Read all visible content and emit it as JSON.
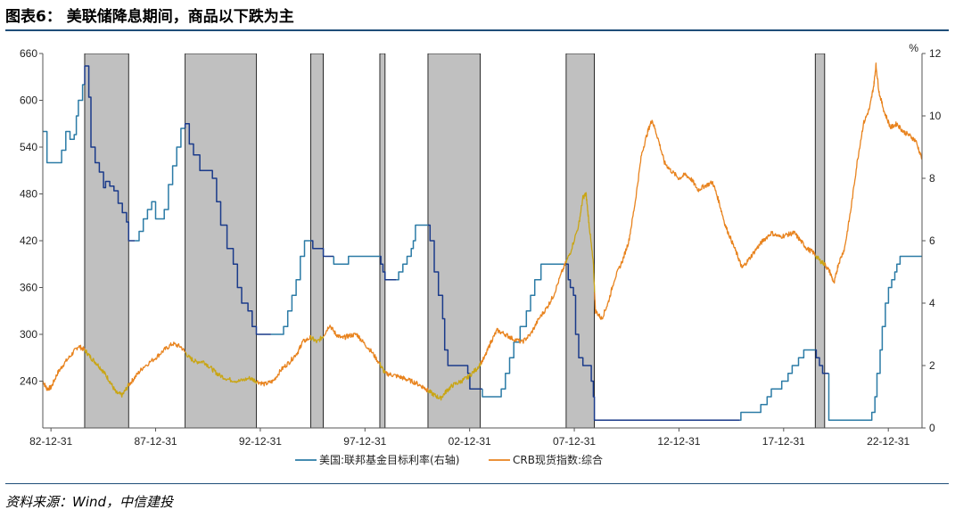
{
  "header": {
    "title": "图表6： 美联储降息期间，商品以下跌为主"
  },
  "footer": {
    "source": "资料来源：Wind，中信建投"
  },
  "chart_data": {
    "type": "line",
    "title": "图表6： 美联储降息期间，商品以下跌为主",
    "x_ticks": [
      "82-12-31",
      "87-12-31",
      "92-12-31",
      "97-12-31",
      "02-12-31",
      "07-12-31",
      "12-12-31",
      "17-12-31",
      "22-12-31"
    ],
    "x_tick_years": [
      1982.99,
      1987.99,
      1992.99,
      1997.99,
      2002.99,
      2007.99,
      2012.99,
      2017.99,
      2022.99
    ],
    "x_range": [
      1982.6,
      2024.6
    ],
    "y_left": {
      "ticks": [
        660,
        600,
        540,
        480,
        420,
        360,
        300,
        240
      ],
      "range": [
        180,
        660
      ]
    },
    "y_right": {
      "unit": "%",
      "ticks": [
        12,
        10,
        8,
        6,
        4,
        2,
        0
      ],
      "range": [
        0,
        12
      ]
    },
    "shaded_periods": [
      [
        1984.6,
        1986.7
      ],
      [
        1989.4,
        1992.8
      ],
      [
        1995.4,
        1996.0
      ],
      [
        1998.7,
        1998.95
      ],
      [
        2001.0,
        2003.5
      ],
      [
        2007.6,
        2008.95
      ],
      [
        2019.5,
        2019.95
      ]
    ],
    "legend_position": "bottom-center",
    "series": [
      {
        "name": "美国:联邦基金目标利率(右轴)",
        "axis": "right",
        "color": "#2b7ba6",
        "highlight_color": "#1a3a8a",
        "points": [
          [
            1982.6,
            9.5
          ],
          [
            1982.8,
            8.5
          ],
          [
            1982.9,
            8.5
          ],
          [
            1983.0,
            8.5
          ],
          [
            1983.3,
            8.5
          ],
          [
            1983.5,
            8.9
          ],
          [
            1983.7,
            9.5
          ],
          [
            1983.9,
            9.25
          ],
          [
            1984.1,
            9.4
          ],
          [
            1984.2,
            10.0
          ],
          [
            1984.3,
            10.5
          ],
          [
            1984.5,
            11.0
          ],
          [
            1984.6,
            11.6
          ],
          [
            1984.8,
            10.6
          ],
          [
            1984.9,
            9.0
          ],
          [
            1985.1,
            8.5
          ],
          [
            1985.3,
            8.2
          ],
          [
            1985.5,
            7.7
          ],
          [
            1985.6,
            7.9
          ],
          [
            1985.8,
            7.75
          ],
          [
            1986.0,
            7.6
          ],
          [
            1986.2,
            7.2
          ],
          [
            1986.4,
            6.9
          ],
          [
            1986.6,
            6.6
          ],
          [
            1986.7,
            6.0
          ],
          [
            1987.0,
            6.0
          ],
          [
            1987.2,
            6.3
          ],
          [
            1987.4,
            6.7
          ],
          [
            1987.6,
            7.0
          ],
          [
            1987.8,
            7.25
          ],
          [
            1987.99,
            6.7
          ],
          [
            1988.2,
            6.7
          ],
          [
            1988.4,
            7.0
          ],
          [
            1988.6,
            7.8
          ],
          [
            1988.8,
            8.4
          ],
          [
            1989.0,
            9.0
          ],
          [
            1989.2,
            9.6
          ],
          [
            1989.4,
            9.75
          ],
          [
            1989.6,
            9.1
          ],
          [
            1989.8,
            8.75
          ],
          [
            1990.1,
            8.25
          ],
          [
            1990.4,
            8.25
          ],
          [
            1990.7,
            8.0
          ],
          [
            1990.9,
            7.25
          ],
          [
            1991.1,
            6.5
          ],
          [
            1991.4,
            5.75
          ],
          [
            1991.7,
            5.25
          ],
          [
            1991.9,
            4.5
          ],
          [
            1992.1,
            4.0
          ],
          [
            1992.4,
            3.75
          ],
          [
            1992.6,
            3.25
          ],
          [
            1992.8,
            3.0
          ],
          [
            1993.5,
            3.0
          ],
          [
            1994.0,
            3.0
          ],
          [
            1994.1,
            3.25
          ],
          [
            1994.3,
            3.75
          ],
          [
            1994.5,
            4.25
          ],
          [
            1994.7,
            4.75
          ],
          [
            1994.9,
            5.5
          ],
          [
            1995.1,
            6.0
          ],
          [
            1995.4,
            6.0
          ],
          [
            1995.5,
            5.75
          ],
          [
            1995.9,
            5.75
          ],
          [
            1996.0,
            5.5
          ],
          [
            1996.5,
            5.25
          ],
          [
            1997.2,
            5.5
          ],
          [
            1998.7,
            5.5
          ],
          [
            1998.75,
            5.25
          ],
          [
            1998.85,
            5.0
          ],
          [
            1998.95,
            4.75
          ],
          [
            1999.5,
            4.75
          ],
          [
            1999.6,
            5.0
          ],
          [
            1999.8,
            5.25
          ],
          [
            2000.0,
            5.5
          ],
          [
            2000.2,
            5.75
          ],
          [
            2000.3,
            6.0
          ],
          [
            2000.4,
            6.5
          ],
          [
            2001.0,
            6.5
          ],
          [
            2001.1,
            6.0
          ],
          [
            2001.3,
            5.0
          ],
          [
            2001.5,
            4.25
          ],
          [
            2001.7,
            3.5
          ],
          [
            2001.8,
            2.5
          ],
          [
            2001.95,
            2.0
          ],
          [
            2002.9,
            1.75
          ],
          [
            2003.0,
            1.25
          ],
          [
            2003.5,
            1.25
          ],
          [
            2003.6,
            1.0
          ],
          [
            2004.4,
            1.0
          ],
          [
            2004.5,
            1.25
          ],
          [
            2004.7,
            1.75
          ],
          [
            2004.9,
            2.25
          ],
          [
            2005.1,
            2.75
          ],
          [
            2005.4,
            3.25
          ],
          [
            2005.7,
            3.75
          ],
          [
            2005.9,
            4.25
          ],
          [
            2006.1,
            4.75
          ],
          [
            2006.4,
            5.25
          ],
          [
            2007.6,
            5.25
          ],
          [
            2007.7,
            4.75
          ],
          [
            2007.8,
            4.5
          ],
          [
            2007.95,
            4.25
          ],
          [
            2008.05,
            3.0
          ],
          [
            2008.2,
            2.25
          ],
          [
            2008.4,
            2.0
          ],
          [
            2008.8,
            1.5
          ],
          [
            2008.9,
            1.0
          ],
          [
            2008.95,
            0.25
          ],
          [
            2015.9,
            0.25
          ],
          [
            2015.95,
            0.5
          ],
          [
            2016.9,
            0.75
          ],
          [
            2017.2,
            1.0
          ],
          [
            2017.4,
            1.25
          ],
          [
            2017.9,
            1.5
          ],
          [
            2018.2,
            1.75
          ],
          [
            2018.4,
            2.0
          ],
          [
            2018.7,
            2.25
          ],
          [
            2018.95,
            2.5
          ],
          [
            2019.5,
            2.5
          ],
          [
            2019.55,
            2.25
          ],
          [
            2019.7,
            2.0
          ],
          [
            2019.85,
            1.75
          ],
          [
            2020.15,
            0.25
          ],
          [
            2022.1,
            0.25
          ],
          [
            2022.2,
            0.5
          ],
          [
            2022.35,
            1.0
          ],
          [
            2022.45,
            1.75
          ],
          [
            2022.6,
            2.5
          ],
          [
            2022.7,
            3.25
          ],
          [
            2022.85,
            4.0
          ],
          [
            2023.0,
            4.5
          ],
          [
            2023.15,
            4.75
          ],
          [
            2023.3,
            5.0
          ],
          [
            2023.4,
            5.25
          ],
          [
            2023.55,
            5.5
          ],
          [
            2024.6,
            5.5
          ]
        ]
      },
      {
        "name": "CRB现货指数:综合",
        "axis": "left",
        "color": "#e8831e",
        "highlight_color": "#c9a514",
        "points": [
          [
            1982.6,
            240
          ],
          [
            1982.8,
            230
          ],
          [
            1983.0,
            232
          ],
          [
            1983.3,
            250
          ],
          [
            1983.6,
            262
          ],
          [
            1984.0,
            275
          ],
          [
            1984.3,
            285
          ],
          [
            1984.6,
            280
          ],
          [
            1984.9,
            270
          ],
          [
            1985.2,
            262
          ],
          [
            1985.5,
            252
          ],
          [
            1985.8,
            240
          ],
          [
            1986.1,
            225
          ],
          [
            1986.4,
            222
          ],
          [
            1986.7,
            235
          ],
          [
            1987.0,
            245
          ],
          [
            1987.4,
            258
          ],
          [
            1987.99,
            270
          ],
          [
            1988.4,
            280
          ],
          [
            1988.8,
            288
          ],
          [
            1989.2,
            284
          ],
          [
            1989.6,
            270
          ],
          [
            1989.9,
            265
          ],
          [
            1990.3,
            265
          ],
          [
            1990.7,
            255
          ],
          [
            1991.0,
            248
          ],
          [
            1991.5,
            242
          ],
          [
            1992.0,
            240
          ],
          [
            1992.5,
            244
          ],
          [
            1992.8,
            240
          ],
          [
            1993.2,
            236
          ],
          [
            1993.6,
            240
          ],
          [
            1994.0,
            255
          ],
          [
            1994.4,
            265
          ],
          [
            1994.8,
            278
          ],
          [
            1995.0,
            290
          ],
          [
            1995.4,
            296
          ],
          [
            1995.7,
            290
          ],
          [
            1996.0,
            298
          ],
          [
            1996.3,
            312
          ],
          [
            1996.6,
            300
          ],
          [
            1996.9,
            295
          ],
          [
            1997.2,
            298
          ],
          [
            1997.6,
            300
          ],
          [
            1997.9,
            290
          ],
          [
            1998.3,
            278
          ],
          [
            1998.7,
            262
          ],
          [
            1998.95,
            250
          ],
          [
            1999.3,
            248
          ],
          [
            1999.7,
            245
          ],
          [
            2000.0,
            242
          ],
          [
            2000.4,
            238
          ],
          [
            2000.8,
            232
          ],
          [
            2001.0,
            228
          ],
          [
            2001.3,
            222
          ],
          [
            2001.6,
            218
          ],
          [
            2001.9,
            228
          ],
          [
            2002.2,
            235
          ],
          [
            2002.6,
            240
          ],
          [
            2002.9,
            245
          ],
          [
            2003.3,
            255
          ],
          [
            2003.7,
            270
          ],
          [
            2004.0,
            290
          ],
          [
            2004.3,
            305
          ],
          [
            2004.7,
            300
          ],
          [
            2005.0,
            295
          ],
          [
            2005.5,
            290
          ],
          [
            2005.9,
            300
          ],
          [
            2006.3,
            320
          ],
          [
            2006.7,
            335
          ],
          [
            2007.0,
            350
          ],
          [
            2007.4,
            380
          ],
          [
            2007.8,
            405
          ],
          [
            2008.2,
            440
          ],
          [
            2008.4,
            475
          ],
          [
            2008.55,
            480
          ],
          [
            2008.7,
            440
          ],
          [
            2008.9,
            390
          ],
          [
            2009.0,
            330
          ],
          [
            2009.3,
            320
          ],
          [
            2009.6,
            340
          ],
          [
            2009.9,
            370
          ],
          [
            2010.3,
            395
          ],
          [
            2010.6,
            420
          ],
          [
            2010.9,
            470
          ],
          [
            2011.2,
            530
          ],
          [
            2011.5,
            560
          ],
          [
            2011.7,
            575
          ],
          [
            2012.0,
            550
          ],
          [
            2012.3,
            520
          ],
          [
            2012.6,
            510
          ],
          [
            2012.99,
            500
          ],
          [
            2013.3,
            505
          ],
          [
            2013.6,
            498
          ],
          [
            2013.9,
            485
          ],
          [
            2014.2,
            490
          ],
          [
            2014.6,
            495
          ],
          [
            2014.9,
            470
          ],
          [
            2015.2,
            440
          ],
          [
            2015.5,
            420
          ],
          [
            2015.8,
            400
          ],
          [
            2016.0,
            385
          ],
          [
            2016.3,
            395
          ],
          [
            2016.7,
            410
          ],
          [
            2017.0,
            420
          ],
          [
            2017.4,
            430
          ],
          [
            2017.8,
            425
          ],
          [
            2018.2,
            428
          ],
          [
            2018.5,
            430
          ],
          [
            2018.8,
            420
          ],
          [
            2019.1,
            410
          ],
          [
            2019.4,
            405
          ],
          [
            2019.7,
            395
          ],
          [
            2019.95,
            390
          ],
          [
            2020.2,
            380
          ],
          [
            2020.4,
            365
          ],
          [
            2020.6,
            390
          ],
          [
            2020.9,
            410
          ],
          [
            2021.2,
            460
          ],
          [
            2021.5,
            520
          ],
          [
            2021.8,
            570
          ],
          [
            2022.1,
            590
          ],
          [
            2022.3,
            620
          ],
          [
            2022.4,
            645
          ],
          [
            2022.55,
            610
          ],
          [
            2022.8,
            585
          ],
          [
            2023.1,
            565
          ],
          [
            2023.4,
            570
          ],
          [
            2023.7,
            560
          ],
          [
            2024.0,
            555
          ],
          [
            2024.3,
            548
          ],
          [
            2024.6,
            525
          ]
        ]
      }
    ]
  }
}
